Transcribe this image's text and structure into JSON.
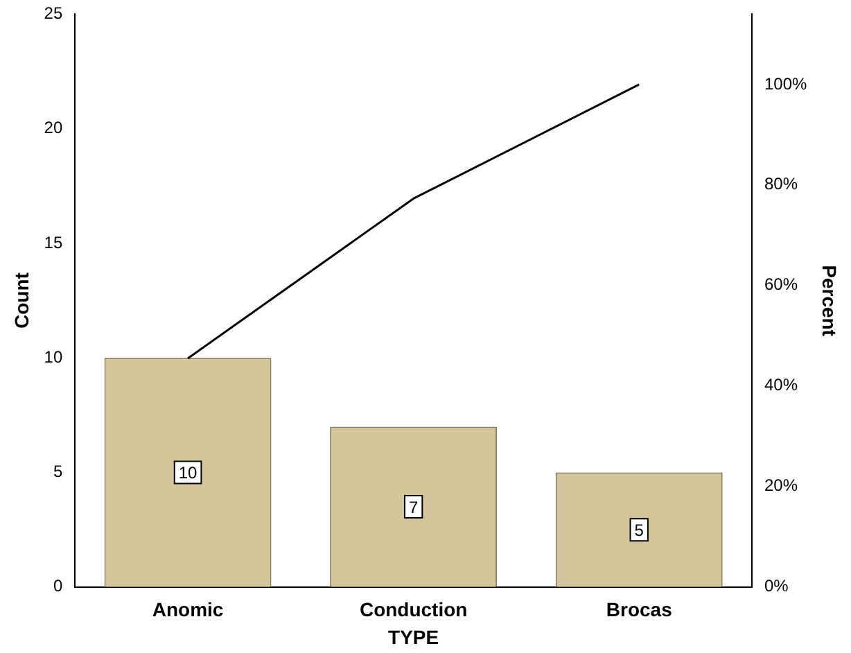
{
  "chart_data": {
    "type": "bar",
    "xlabel": "TYPE",
    "ylabel": "Count",
    "y2label": "Percent",
    "categories": [
      "Anomic",
      "Conduction",
      "Brocas"
    ],
    "series": [
      {
        "color": "#d4c69a",
        "values": [
          10,
          7,
          5
        ],
        "value_labels": [
          "10",
          "7",
          "5"
        ]
      },
      {
        "type": "line",
        "axis": "y2",
        "color": "#000000",
        "values": [
          45.5,
          77.3,
          100
        ]
      }
    ],
    "ylim": [
      0,
      25
    ],
    "yticks": [
      0,
      5,
      10,
      15,
      20,
      25
    ],
    "y2lim": [
      0,
      114
    ],
    "y2ticks": [
      {
        "value": 0,
        "label": "0%"
      },
      {
        "value": 20,
        "label": "20%"
      },
      {
        "value": 40,
        "label": "40%"
      },
      {
        "value": 60,
        "label": "60%"
      },
      {
        "value": 80,
        "label": "80%"
      },
      {
        "value": 100,
        "label": "100%"
      }
    ],
    "grid": false,
    "legend": false,
    "marker": "none",
    "line_style": "solid"
  }
}
